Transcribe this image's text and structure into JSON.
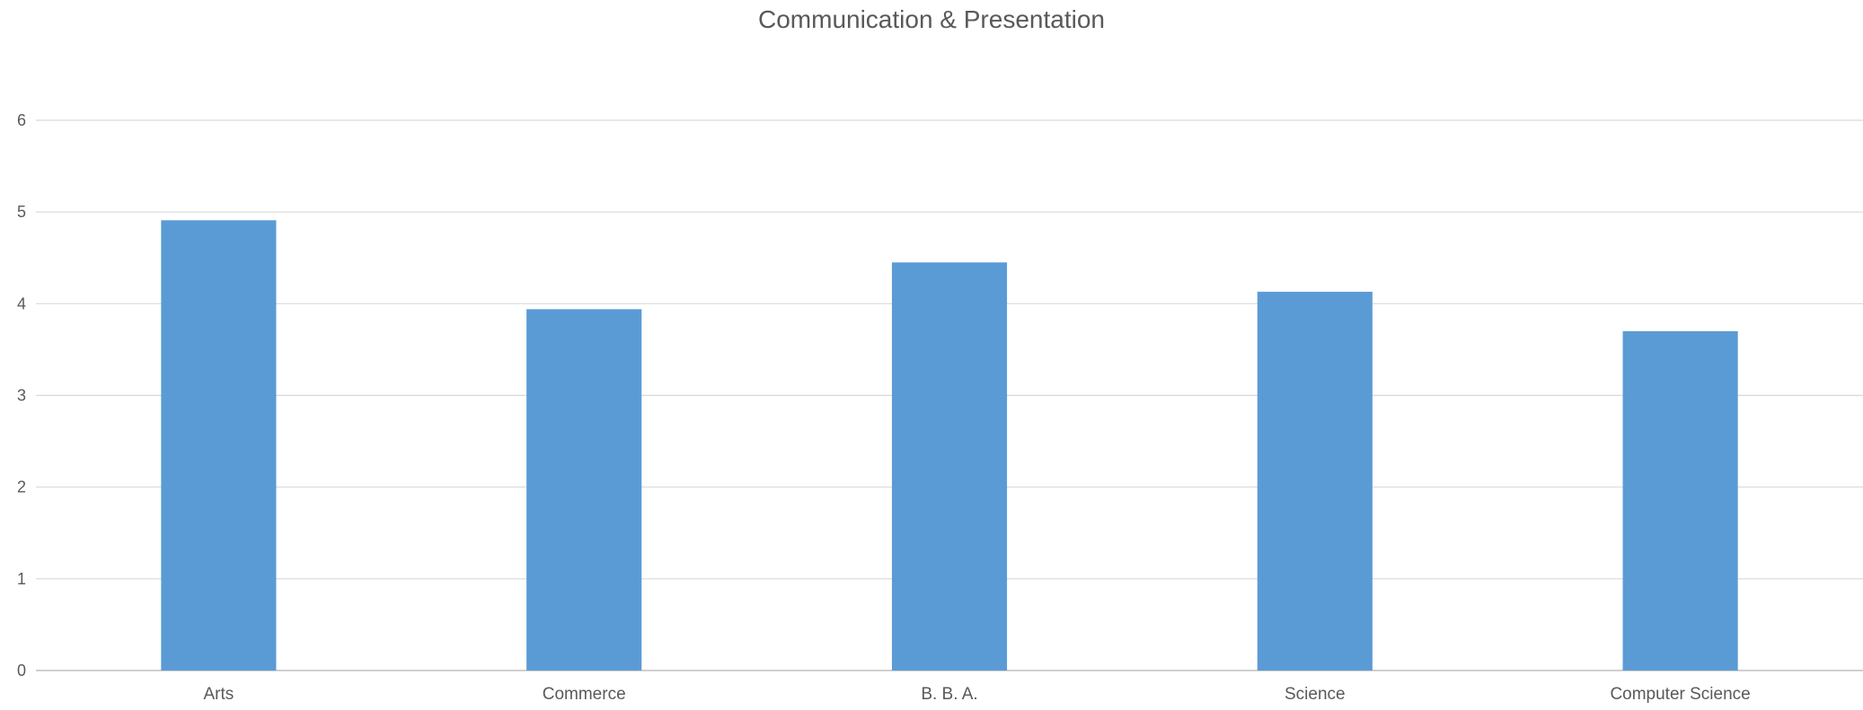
{
  "chart_data": {
    "type": "bar",
    "title": "Communication & Presentation",
    "categories": [
      "Arts",
      "Commerce",
      "B. B. A.",
      "Science",
      "Computer Science"
    ],
    "values": [
      4.91,
      3.94,
      4.45,
      4.13,
      3.7
    ],
    "xlabel": "",
    "ylabel": "",
    "ylim": [
      0,
      6
    ],
    "yticks": [
      0,
      1,
      2,
      3,
      4,
      5,
      6
    ],
    "grid": true,
    "legend": "none",
    "colors": {
      "bar": "#5B9BD5",
      "grid": "#D9D9D9",
      "axis": "#BFBFBF",
      "text": "#595959"
    }
  }
}
